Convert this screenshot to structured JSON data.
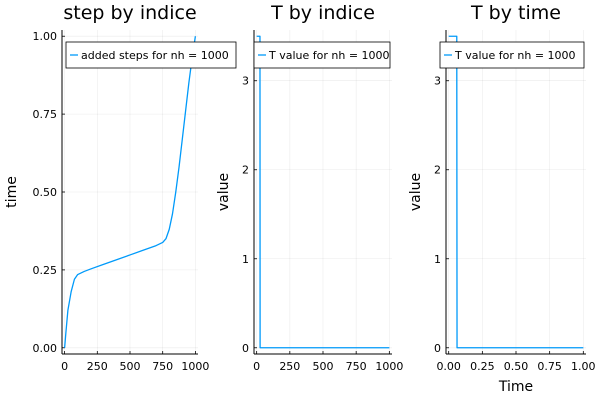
{
  "colors": {
    "series": "#009AFA"
  },
  "chart_data": [
    {
      "type": "line",
      "title": "step by indice",
      "xlabel": "",
      "ylabel": "time",
      "xlim": [
        0,
        1000
      ],
      "ylim": [
        0,
        1.0
      ],
      "grid": true,
      "legend_position": "top",
      "x_ticks": [
        0,
        250,
        500,
        750,
        1000
      ],
      "x_tick_labels": [
        "0",
        "250",
        "500",
        "750",
        "1000"
      ],
      "y_ticks": [
        0.0,
        0.25,
        0.5,
        0.75,
        1.0
      ],
      "y_tick_labels": [
        "0.00",
        "0.25",
        "0.50",
        "0.75",
        "1.00"
      ],
      "series": [
        {
          "name": "added steps for nh = 1000",
          "x": [
            0,
            10,
            25,
            50,
            75,
            100,
            150,
            200,
            300,
            400,
            500,
            600,
            700,
            750,
            775,
            800,
            825,
            850,
            875,
            900,
            925,
            950,
            975,
            1000
          ],
          "y": [
            0.0,
            0.05,
            0.12,
            0.18,
            0.22,
            0.235,
            0.245,
            0.253,
            0.268,
            0.283,
            0.298,
            0.313,
            0.328,
            0.338,
            0.35,
            0.38,
            0.43,
            0.5,
            0.58,
            0.67,
            0.76,
            0.85,
            0.93,
            1.0
          ]
        }
      ]
    },
    {
      "type": "line",
      "title": "T by indice",
      "xlabel": "",
      "ylabel": "value",
      "xlim": [
        0,
        1000
      ],
      "ylim": [
        0,
        3.5
      ],
      "grid": true,
      "legend_position": "top",
      "x_ticks": [
        0,
        250,
        500,
        750,
        1000
      ],
      "x_tick_labels": [
        "0",
        "250",
        "500",
        "750",
        "1000"
      ],
      "y_ticks": [
        0,
        1,
        2,
        3
      ],
      "y_tick_labels": [
        "0",
        "1",
        "2",
        "3"
      ],
      "series": [
        {
          "name": "T value for nh = 1000",
          "x": [
            0,
            1,
            25,
            26,
            1000
          ],
          "y": [
            3.5,
            3.5,
            3.5,
            0,
            0
          ]
        }
      ]
    },
    {
      "type": "line",
      "title": "T by time",
      "xlabel": "Time",
      "ylabel": "value",
      "xlim": [
        0,
        1.0
      ],
      "ylim": [
        0,
        3.5
      ],
      "grid": true,
      "legend_position": "top",
      "x_ticks": [
        0.0,
        0.25,
        0.5,
        0.75,
        1.0
      ],
      "x_tick_labels": [
        "0.00",
        "0.25",
        "0.50",
        "0.75",
        "1.00"
      ],
      "y_ticks": [
        0,
        1,
        2,
        3
      ],
      "y_tick_labels": [
        "0",
        "1",
        "2",
        "3"
      ],
      "series": [
        {
          "name": "T value for nh = 1000",
          "x": [
            0,
            0.002,
            0.06,
            0.062,
            1.0
          ],
          "y": [
            3.5,
            3.5,
            3.5,
            0,
            0
          ]
        }
      ]
    }
  ]
}
